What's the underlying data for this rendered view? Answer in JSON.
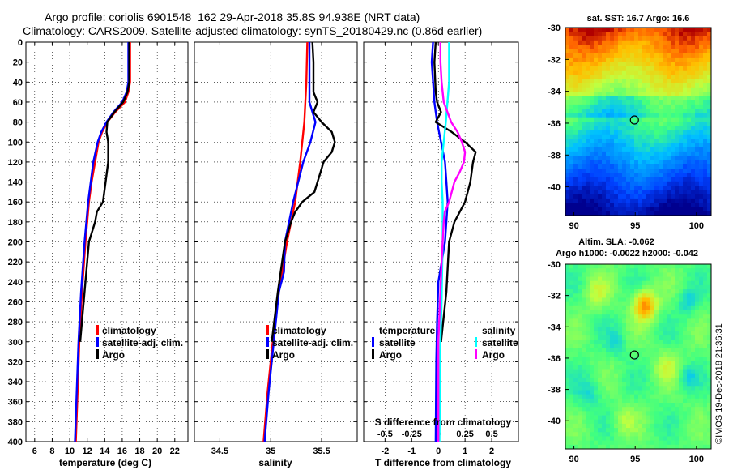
{
  "header": {
    "line1": "Argo profile: coriolis 6901548_162 29-Apr-2018 35.8S 94.938E (NRT data)",
    "line2": "Climatology: CARS2009. Satellite-adjusted climatology: synTS_20180429.nc (0.86d earlier)"
  },
  "colors": {
    "climatology": "#ff0000",
    "satellite": "#0000ff",
    "argo": "#000000",
    "argo_salinity_diff": "#ff00ff",
    "satellite_salinity_diff": "#00ffff"
  },
  "chart_data": [
    {
      "id": "temperature",
      "type": "line",
      "xlabel": "temperature (deg C)",
      "ylabel": "depth",
      "xlim": [
        5,
        23.5
      ],
      "ylim": [
        0,
        400
      ],
      "xticks": [
        6,
        8,
        10,
        12,
        14,
        16,
        18,
        20,
        22
      ],
      "yticks": [
        0,
        20,
        40,
        60,
        80,
        100,
        120,
        140,
        160,
        180,
        200,
        220,
        240,
        260,
        280,
        300,
        320,
        340,
        360,
        380,
        400
      ],
      "legend": [
        "climatology",
        "satellite-adj. clim.",
        "Argo"
      ],
      "series": [
        {
          "name": "climatology",
          "color": "#ff0000",
          "depth": [
            0,
            40,
            50,
            60,
            70,
            80,
            90,
            100,
            120,
            140,
            160,
            200,
            250,
            300,
            350,
            400
          ],
          "values": [
            16.9,
            16.9,
            16.7,
            16.3,
            15.2,
            14.3,
            13.7,
            13.3,
            12.9,
            12.5,
            12.2,
            11.8,
            11.4,
            11.1,
            10.9,
            10.7
          ]
        },
        {
          "name": "satellite-adj. clim.",
          "color": "#0000ff",
          "depth": [
            0,
            40,
            50,
            60,
            70,
            80,
            90,
            100,
            120,
            140,
            160,
            200,
            250,
            300,
            350,
            400
          ],
          "values": [
            16.7,
            16.7,
            16.5,
            16.0,
            15.0,
            14.2,
            13.6,
            13.2,
            12.7,
            12.4,
            12.1,
            11.7,
            11.3,
            11.0,
            10.8,
            10.6
          ]
        },
        {
          "name": "Argo",
          "color": "#000000",
          "depth": [
            0,
            40,
            50,
            60,
            70,
            80,
            90,
            100,
            120,
            140,
            160,
            170,
            180,
            200,
            250,
            300
          ],
          "values": [
            16.8,
            16.8,
            16.6,
            16.1,
            15.1,
            14.3,
            14.2,
            14.4,
            14.4,
            14.1,
            13.8,
            13.1,
            12.9,
            12.2,
            11.7,
            11.2
          ]
        }
      ]
    },
    {
      "id": "salinity",
      "type": "line",
      "xlabel": "salinity",
      "ylabel": "depth",
      "xlim": [
        34.25,
        35.85
      ],
      "ylim": [
        0,
        400
      ],
      "xticks": [
        34.5,
        35,
        35.5
      ],
      "tick_labels": [
        "34.5",
        "35",
        "35.5"
      ],
      "legend": [
        "climatology",
        "satellite-adj. clim.",
        "Argo"
      ],
      "series": [
        {
          "name": "climatology",
          "color": "#ff0000",
          "depth": [
            0,
            40,
            80,
            120,
            160,
            200,
            250,
            300,
            350,
            400
          ],
          "values": [
            35.36,
            35.35,
            35.33,
            35.29,
            35.24,
            35.16,
            35.08,
            35.02,
            34.97,
            34.93
          ]
        },
        {
          "name": "satellite-adj. clim.",
          "color": "#0000ff",
          "depth": [
            0,
            40,
            60,
            70,
            80,
            100,
            120,
            160,
            200,
            230,
            250,
            300,
            350,
            400
          ],
          "values": [
            35.38,
            35.38,
            35.38,
            35.41,
            35.44,
            35.39,
            35.32,
            35.22,
            35.14,
            35.13,
            35.08,
            35.03,
            34.98,
            34.94
          ]
        },
        {
          "name": "Argo",
          "color": "#000000",
          "depth": [
            0,
            20,
            50,
            60,
            70,
            80,
            90,
            100,
            110,
            120,
            130,
            140,
            150,
            160,
            170,
            180,
            200,
            250,
            300
          ],
          "values": [
            35.41,
            35.42,
            35.42,
            35.46,
            35.42,
            35.5,
            35.6,
            35.63,
            35.6,
            35.52,
            35.49,
            35.46,
            35.43,
            35.31,
            35.24,
            35.2,
            35.14,
            35.07,
            35.01
          ]
        }
      ]
    },
    {
      "id": "difference",
      "type": "line",
      "xlabel": "T difference from climatology",
      "xlabel_top": "S difference from climatology",
      "ylabel": "depth",
      "xlim": [
        -2.8,
        3.0
      ],
      "ylim": [
        0,
        400
      ],
      "xticks": [
        -2,
        -1,
        0,
        1,
        2
      ],
      "top_xticks": [
        "-0.5",
        "-0.25",
        "0",
        "0.25",
        "0.5"
      ],
      "legend_temperature": {
        "title": "temperature",
        "items": [
          "satellite",
          "Argo"
        ]
      },
      "legend_salinity": {
        "title": "salinity",
        "items": [
          "satellite",
          "Argo"
        ]
      },
      "series": [
        {
          "name": "temperature satellite",
          "color": "#0000ff",
          "depth": [
            0,
            20,
            60,
            80,
            100,
            120,
            140,
            160,
            200,
            240,
            280,
            320,
            400
          ],
          "values": [
            -0.2,
            -0.25,
            -0.15,
            -0.05,
            0.1,
            0.25,
            0.3,
            0.35,
            0.25,
            0.0,
            -0.05,
            -0.08,
            -0.1
          ]
        },
        {
          "name": "temperature Argo",
          "color": "#000000",
          "depth": [
            0,
            20,
            50,
            60,
            70,
            80,
            90,
            100,
            110,
            120,
            140,
            160,
            170,
            180,
            200,
            250,
            300
          ],
          "values": [
            -0.1,
            -0.15,
            -0.1,
            -0.05,
            0.1,
            -0.1,
            0.5,
            1.0,
            1.4,
            1.3,
            1.2,
            1.0,
            0.8,
            0.6,
            0.4,
            0.3,
            0.1
          ]
        },
        {
          "name": "salinity satellite",
          "color": "#00ffff",
          "depth": [
            0,
            40,
            80,
            100,
            120,
            140,
            160,
            200,
            260,
            300,
            400
          ],
          "values": [
            0.1,
            0.1,
            0.07,
            0.05,
            0.03,
            0.03,
            0.04,
            0.04,
            0.03,
            0.02,
            0.01
          ]
        },
        {
          "name": "salinity Argo",
          "color": "#ff00ff",
          "depth": [
            0,
            20,
            40,
            60,
            80,
            90,
            100,
            110,
            120,
            130,
            140,
            160,
            170,
            180,
            220,
            300,
            400
          ],
          "values": [
            0.02,
            0.02,
            0.03,
            0.05,
            0.12,
            0.18,
            0.22,
            0.25,
            0.24,
            0.2,
            0.15,
            0.1,
            0.06,
            0.05,
            0.03,
            0.0,
            0.0
          ]
        }
      ]
    }
  ],
  "maps": {
    "sst": {
      "title": "sat. SST: 16.7 Argo: 16.6",
      "xticks": [
        "90",
        "95",
        "100"
      ],
      "yticks": [
        "-30",
        "-32",
        "-34",
        "-36",
        "-38",
        "-40"
      ],
      "float_lon": 94.938,
      "float_lat": -35.8
    },
    "sla": {
      "title1": "Altim. SLA: -0.062",
      "title2": "Argo h1000: -0.0022 h2000: -0.042",
      "xticks": [
        "90",
        "95",
        "100"
      ],
      "yticks": [
        "-30",
        "-32",
        "-34",
        "-36",
        "-38",
        "-40"
      ],
      "float_lon": 94.938,
      "float_lat": -35.8
    }
  },
  "footer": {
    "credit": "©IMOS 19-Dec-2018 21:36:31"
  }
}
